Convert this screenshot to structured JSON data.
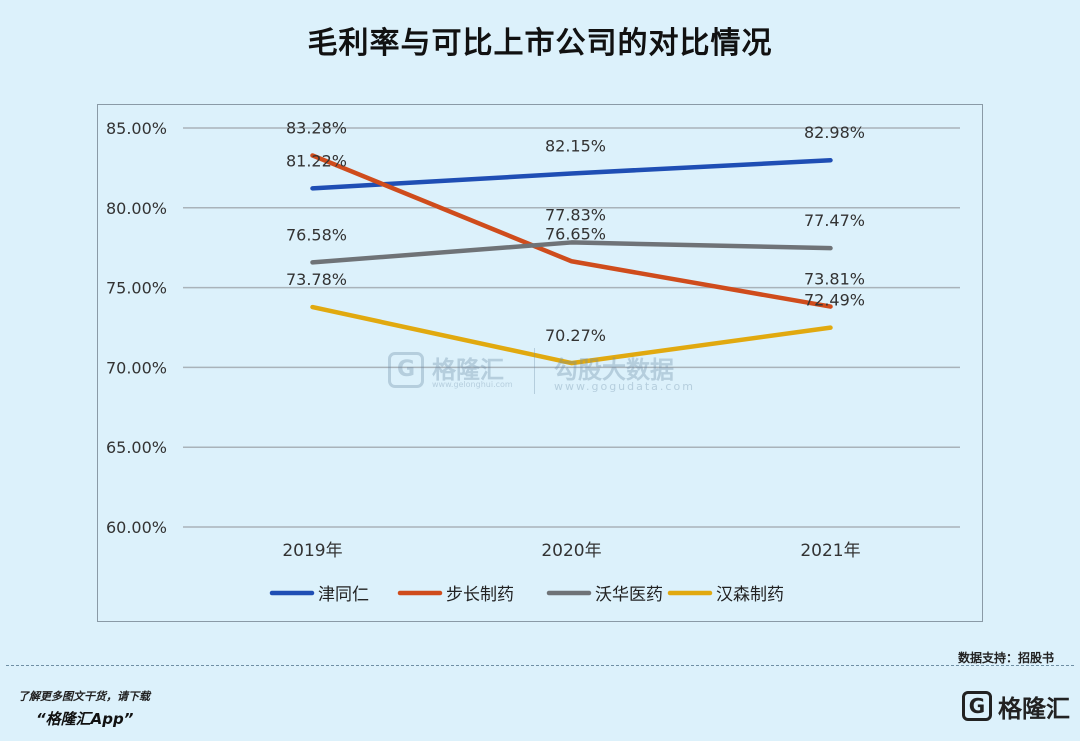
{
  "title": "毛利率与可比上市公司的对比情况",
  "source_text": "数据支持：招股书",
  "promo": {
    "line1": "了解更多图文干货，请下载",
    "line2": "“格隆汇App”"
  },
  "brand": {
    "name": "格隆汇",
    "logo_letter": "G"
  },
  "watermark": {
    "name1": "格隆汇",
    "url1": "www.gelonghui.com",
    "name2": "勾股大数据",
    "url2": "www.gogudata.com"
  },
  "chart_data": {
    "type": "line",
    "title": "毛利率与可比上市公司的对比情况",
    "categories": [
      "2019年",
      "2020年",
      "2021年"
    ],
    "ylim": [
      60,
      85
    ],
    "yticks": [
      60,
      65,
      70,
      75,
      80,
      85
    ],
    "ytick_labels": [
      "60.00%",
      "65.00%",
      "70.00%",
      "75.00%",
      "80.00%",
      "85.00%"
    ],
    "grid": true,
    "legend_position": "bottom",
    "series": [
      {
        "name": "津同仁",
        "color": "#1f4eb4",
        "values": [
          81.22,
          82.15,
          82.98
        ],
        "labels": [
          "81.22%",
          "82.15%",
          "82.98%"
        ]
      },
      {
        "name": "步长制药",
        "color": "#cf4c1c",
        "values": [
          83.28,
          76.65,
          73.81
        ],
        "labels": [
          "83.28%",
          "76.65%",
          "73.81%"
        ]
      },
      {
        "name": "沃华医药",
        "color": "#6f7377",
        "values": [
          76.58,
          77.83,
          77.47
        ],
        "labels": [
          "76.58%",
          "77.83%",
          "77.47%"
        ]
      },
      {
        "name": "汉森制药",
        "color": "#e1a90f",
        "values": [
          73.78,
          70.27,
          72.49
        ],
        "labels": [
          "73.78%",
          "70.27%",
          "72.49%"
        ]
      }
    ]
  }
}
